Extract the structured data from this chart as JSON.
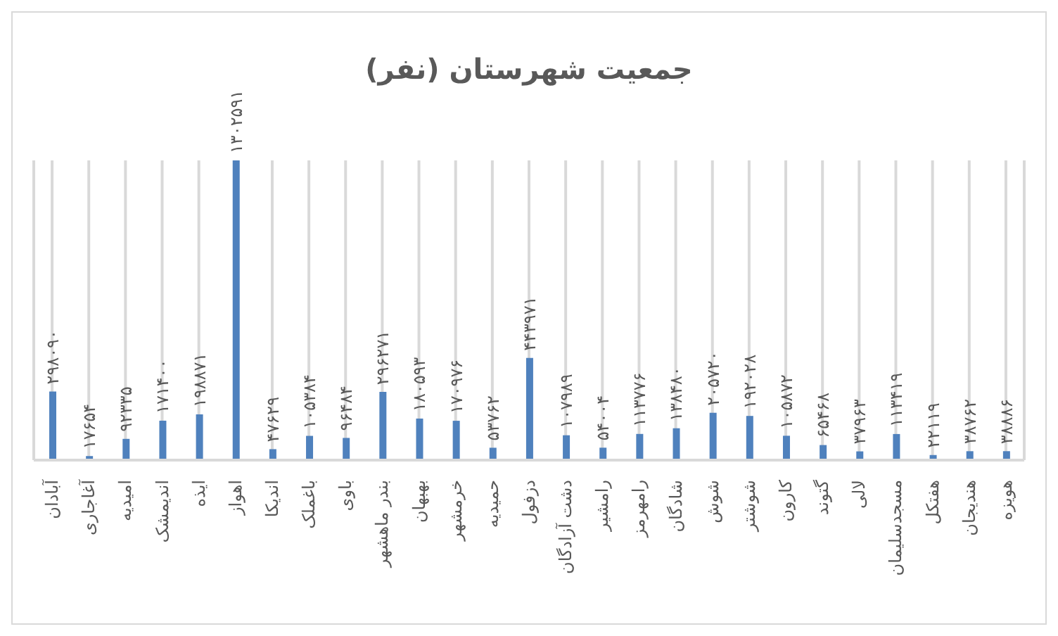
{
  "chart_data": {
    "type": "bar",
    "title": "جمعیت شهرستان (نفر)",
    "categories": [
      "آبادان",
      "آغاجاری",
      "امیدیه",
      "اندیمشک",
      "ایذه",
      "اهواز",
      "اندیکا",
      "باغملک",
      "باوی",
      "بندر ماهشهر",
      "بهبهان",
      "خرمشهر",
      "حمیدیه",
      "دزفول",
      "دشت آزادگان",
      "رامشیر",
      "رامهرمز",
      "شادگان",
      "شوش",
      "شوشتر",
      "کارون",
      "گتوند",
      "لالی",
      "مسجدسلیمان",
      "هفتکل",
      "هندیجان",
      "هویزه"
    ],
    "series": [
      {
        "color": "#4f81bd",
        "values": [
          298090,
          17654,
          92335,
          171400,
          198871,
          1302591,
          47629,
          105384,
          96484,
          296271,
          180593,
          170976,
          53762,
          443971,
          107989,
          54004,
          113776,
          138480,
          205720,
          192028,
          105872,
          65468,
          37963,
          113419,
          22119,
          38762,
          38886
        ],
        "value_labels": [
          "۲۹۸۰۹۰",
          "۱۷۶۵۴",
          "۹۲۳۳۵",
          "۱۷۱۴۰۰",
          "۱۹۸۸۷۱",
          "۱۳۰۲۵۹۱",
          "۴۷۶۲۹",
          "۱۰۵۳۸۴",
          "۹۶۴۸۴",
          "۲۹۶۲۷۱",
          "۱۸۰۵۹۳",
          "۱۷۰۹۷۶",
          "۵۳۷۶۲",
          "۴۴۳۹۷۱",
          "۱۰۷۹۸۹",
          "۵۴۰۰۴",
          "۱۱۳۷۷۶",
          "۱۳۸۴۸۰",
          "۲۰۵۷۲۰",
          "۱۹۲۰۲۸",
          "۱۰۵۸۷۲",
          "۶۵۴۶۸",
          "۳۷۹۶۳",
          "۱۱۳۴۱۹",
          "۲۲۱۱۹",
          "۳۸۷۶۲",
          "۳۸۸۸۶"
        ]
      }
    ],
    "grid": "x",
    "legend": false
  }
}
